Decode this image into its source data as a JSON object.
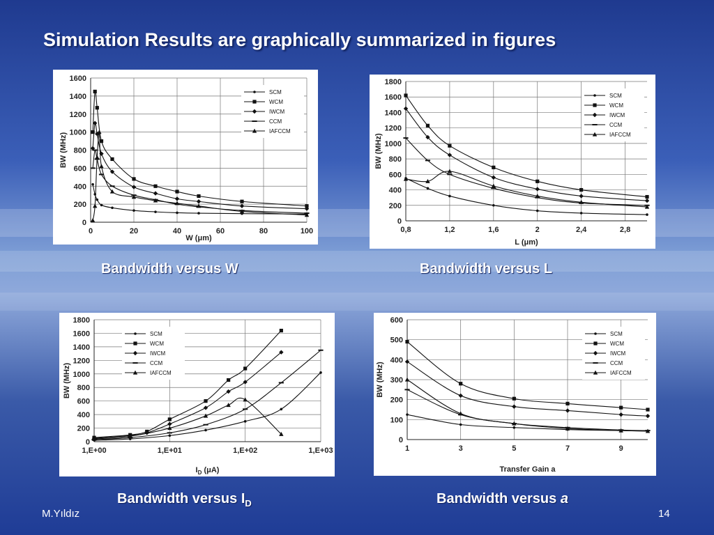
{
  "slide": {
    "title": "Simulation Results are graphically summarized in figures",
    "author": "M.Yıldız",
    "page_number": "14"
  },
  "captions": {
    "w": "Bandwidth versus W",
    "l": "Bandwidth versus L",
    "id_text": "Bandwidth versus I",
    "id_sub": "D",
    "a_text": "Bandwidth versus ",
    "a_var": "a"
  },
  "chart_data": [
    {
      "id": "bw-vs-w",
      "type": "line",
      "title": "",
      "xlabel": "W (μm)",
      "ylabel": "BW (MHz)",
      "xlim": [
        0,
        100
      ],
      "ylim": [
        0,
        1600
      ],
      "xticks": [
        0,
        20,
        40,
        60,
        80,
        100
      ],
      "xtick_labels": [
        "0",
        "20",
        "40",
        "60",
        "80",
        "100"
      ],
      "yticks": [
        0,
        200,
        400,
        600,
        800,
        1000,
        1200,
        1400,
        1600
      ],
      "legend_position": "top-right",
      "series": [
        {
          "name": "SCM",
          "marker": "dot",
          "points": [
            [
              1,
              420
            ],
            [
              2,
              310
            ],
            [
              3,
              250
            ],
            [
              5,
              190
            ],
            [
              10,
              160
            ],
            [
              20,
              130
            ],
            [
              30,
              115
            ],
            [
              40,
              105
            ],
            [
              50,
              100
            ],
            [
              70,
              95
            ],
            [
              100,
              90
            ]
          ]
        },
        {
          "name": "WCM",
          "marker": "square",
          "points": [
            [
              1,
              1000
            ],
            [
              2,
              1450
            ],
            [
              3,
              1270
            ],
            [
              5,
              900
            ],
            [
              10,
              700
            ],
            [
              20,
              480
            ],
            [
              30,
              400
            ],
            [
              40,
              340
            ],
            [
              50,
              290
            ],
            [
              70,
              230
            ],
            [
              100,
              180
            ]
          ]
        },
        {
          "name": "IWCM",
          "marker": "diamond",
          "points": [
            [
              1,
              820
            ],
            [
              2,
              1100
            ],
            [
              3,
              980
            ],
            [
              5,
              760
            ],
            [
              10,
              560
            ],
            [
              20,
              390
            ],
            [
              30,
              320
            ],
            [
              40,
              260
            ],
            [
              50,
              230
            ],
            [
              70,
              180
            ],
            [
              100,
              150
            ]
          ]
        },
        {
          "name": "CCM",
          "marker": "dash",
          "points": [
            [
              1,
              600
            ],
            [
              2,
              800
            ],
            [
              3,
              700
            ],
            [
              5,
              530
            ],
            [
              10,
              400
            ],
            [
              20,
              300
            ],
            [
              30,
              250
            ],
            [
              40,
              200
            ],
            [
              50,
              170
            ],
            [
              70,
              130
            ],
            [
              100,
              100
            ]
          ]
        },
        {
          "name": "IAFCCM",
          "marker": "triangle",
          "points": [
            [
              1,
              20
            ],
            [
              2,
              180
            ],
            [
              3,
              720
            ],
            [
              4,
              1000
            ],
            [
              5,
              620
            ],
            [
              10,
              340
            ],
            [
              20,
              280
            ],
            [
              30,
              240
            ],
            [
              40,
              210
            ],
            [
              50,
              180
            ],
            [
              70,
              120
            ],
            [
              100,
              80
            ]
          ]
        }
      ]
    },
    {
      "id": "bw-vs-l",
      "type": "line",
      "title": "",
      "xlabel": "L (μm)",
      "ylabel": "BW (MHz)",
      "xlim": [
        0.8,
        3.0
      ],
      "ylim": [
        0,
        1800
      ],
      "xticks": [
        0.8,
        1.2,
        1.6,
        2.0,
        2.4,
        2.8
      ],
      "xtick_labels": [
        "0,8",
        "1,2",
        "1,6",
        "2",
        "2,4",
        "2,8"
      ],
      "yticks": [
        0,
        200,
        400,
        600,
        800,
        1000,
        1200,
        1400,
        1600,
        1800
      ],
      "legend_position": "top-right",
      "series": [
        {
          "name": "SCM",
          "marker": "dot",
          "points": [
            [
              0.8,
              550
            ],
            [
              1.0,
              420
            ],
            [
              1.2,
              320
            ],
            [
              1.6,
              200
            ],
            [
              2.0,
              130
            ],
            [
              2.4,
              100
            ],
            [
              3.0,
              80
            ]
          ]
        },
        {
          "name": "WCM",
          "marker": "square",
          "points": [
            [
              0.8,
              1620
            ],
            [
              1.0,
              1230
            ],
            [
              1.2,
              970
            ],
            [
              1.6,
              690
            ],
            [
              2.0,
              510
            ],
            [
              2.4,
              400
            ],
            [
              3.0,
              310
            ]
          ]
        },
        {
          "name": "IWCM",
          "marker": "diamond",
          "points": [
            [
              0.8,
              1450
            ],
            [
              1.0,
              1080
            ],
            [
              1.2,
              850
            ],
            [
              1.6,
              560
            ],
            [
              2.0,
              410
            ],
            [
              2.4,
              320
            ],
            [
              3.0,
              260
            ]
          ]
        },
        {
          "name": "CCM",
          "marker": "dash",
          "points": [
            [
              0.8,
              1070
            ],
            [
              1.0,
              780
            ],
            [
              1.2,
              600
            ],
            [
              1.6,
              420
            ],
            [
              2.0,
              300
            ],
            [
              2.4,
              230
            ],
            [
              3.0,
              200
            ]
          ]
        },
        {
          "name": "IAFCCM",
          "marker": "triangle",
          "points": [
            [
              0.8,
              540
            ],
            [
              1.0,
              510
            ],
            [
              1.2,
              640
            ],
            [
              1.6,
              450
            ],
            [
              2.0,
              320
            ],
            [
              2.4,
              240
            ],
            [
              3.0,
              180
            ]
          ]
        }
      ]
    },
    {
      "id": "bw-vs-id",
      "type": "line",
      "title": "",
      "xlabel": "ID (μA)",
      "ylabel": "BW (MHz)",
      "xscale": "log",
      "xlim": [
        1,
        1000
      ],
      "ylim": [
        0,
        1800
      ],
      "xticks": [
        1,
        10,
        100,
        1000
      ],
      "xtick_labels": [
        "1,E+00",
        "1,E+01",
        "1,E+02",
        "1,E+03"
      ],
      "yticks": [
        0,
        200,
        400,
        600,
        800,
        1000,
        1200,
        1400,
        1600,
        1800
      ],
      "legend_position": "top-left",
      "series": [
        {
          "name": "SCM",
          "marker": "dot",
          "points": [
            [
              1,
              20
            ],
            [
              3,
              40
            ],
            [
              10,
              90
            ],
            [
              30,
              170
            ],
            [
              100,
              300
            ],
            [
              300,
              480
            ],
            [
              1000,
              1020
            ]
          ]
        },
        {
          "name": "WCM",
          "marker": "square",
          "points": [
            [
              1,
              60
            ],
            [
              3,
              100
            ],
            [
              5,
              150
            ],
            [
              10,
              330
            ],
            [
              30,
              600
            ],
            [
              60,
              910
            ],
            [
              100,
              1080
            ],
            [
              300,
              1640
            ]
          ]
        },
        {
          "name": "IWCM",
          "marker": "diamond",
          "points": [
            [
              1,
              50
            ],
            [
              3,
              90
            ],
            [
              5,
              130
            ],
            [
              10,
              260
            ],
            [
              30,
              500
            ],
            [
              60,
              740
            ],
            [
              100,
              880
            ],
            [
              300,
              1320
            ]
          ]
        },
        {
          "name": "CCM",
          "marker": "dash",
          "points": [
            [
              1,
              30
            ],
            [
              3,
              60
            ],
            [
              10,
              130
            ],
            [
              30,
              250
            ],
            [
              100,
              480
            ],
            [
              300,
              870
            ],
            [
              1000,
              1350
            ]
          ]
        },
        {
          "name": "IAFCCM",
          "marker": "triangle",
          "points": [
            [
              1,
              40
            ],
            [
              3,
              80
            ],
            [
              10,
              200
            ],
            [
              30,
              380
            ],
            [
              60,
              540
            ],
            [
              100,
              620
            ],
            [
              300,
              110
            ]
          ]
        }
      ]
    },
    {
      "id": "bw-vs-a",
      "type": "line",
      "title": "",
      "xlabel": "Transfer Gain a",
      "ylabel": "BW (MHz)",
      "xlim": [
        1,
        10
      ],
      "ylim": [
        0,
        600
      ],
      "xticks": [
        1,
        3,
        5,
        7,
        9
      ],
      "xtick_labels": [
        "1",
        "3",
        "5",
        "7",
        "9"
      ],
      "yticks": [
        0,
        100,
        200,
        300,
        400,
        500,
        600
      ],
      "legend_position": "top-right",
      "series": [
        {
          "name": "SCM",
          "marker": "dot",
          "points": [
            [
              1,
              125
            ],
            [
              3,
              75
            ],
            [
              5,
              60
            ],
            [
              7,
              50
            ],
            [
              9,
              45
            ],
            [
              10,
              43
            ]
          ]
        },
        {
          "name": "WCM",
          "marker": "square",
          "points": [
            [
              1,
              490
            ],
            [
              3,
              280
            ],
            [
              5,
              205
            ],
            [
              7,
              180
            ],
            [
              9,
              160
            ],
            [
              10,
              150
            ]
          ]
        },
        {
          "name": "IWCM",
          "marker": "diamond",
          "points": [
            [
              1,
              390
            ],
            [
              3,
              220
            ],
            [
              5,
              165
            ],
            [
              7,
              145
            ],
            [
              9,
              125
            ],
            [
              10,
              118
            ]
          ]
        },
        {
          "name": "CCM",
          "marker": "dash",
          "points": [
            [
              1,
              250
            ],
            [
              3,
              125
            ],
            [
              5,
              80
            ],
            [
              7,
              60
            ],
            [
              9,
              48
            ],
            [
              10,
              45
            ]
          ]
        },
        {
          "name": "IAFCCM",
          "marker": "triangle",
          "points": [
            [
              1,
              300
            ],
            [
              3,
              130
            ],
            [
              5,
              80
            ],
            [
              7,
              55
            ],
            [
              9,
              45
            ],
            [
              10,
              42
            ]
          ]
        }
      ]
    }
  ]
}
